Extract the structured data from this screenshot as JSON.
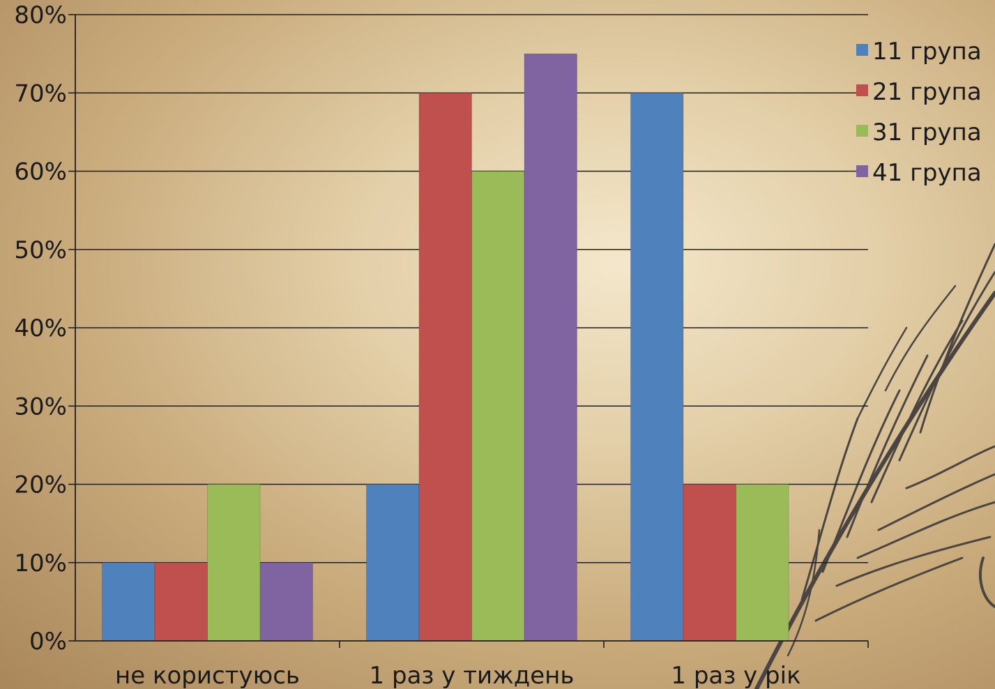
{
  "chart_data": {
    "type": "bar",
    "categories": [
      "не користуюсь",
      "1 раз у тиждень",
      "1 раз у рік"
    ],
    "series": [
      {
        "name": "11 група",
        "color": "#4f81bd",
        "values": [
          10,
          20,
          70
        ]
      },
      {
        "name": "21 група",
        "color": "#c0504d",
        "values": [
          10,
          70,
          20
        ]
      },
      {
        "name": "31 група",
        "color": "#9bbb59",
        "values": [
          20,
          60,
          20
        ]
      },
      {
        "name": "41 група",
        "color": "#8064a2",
        "values": [
          10,
          75,
          0
        ]
      }
    ],
    "yticks": [
      "0%",
      "10%",
      "20%",
      "30%",
      "40%",
      "50%",
      "60%",
      "70%",
      "80%"
    ],
    "ylim": [
      0,
      80
    ],
    "grid": true,
    "legend_position": "top-right",
    "title": "",
    "xlabel": "",
    "ylabel": ""
  }
}
